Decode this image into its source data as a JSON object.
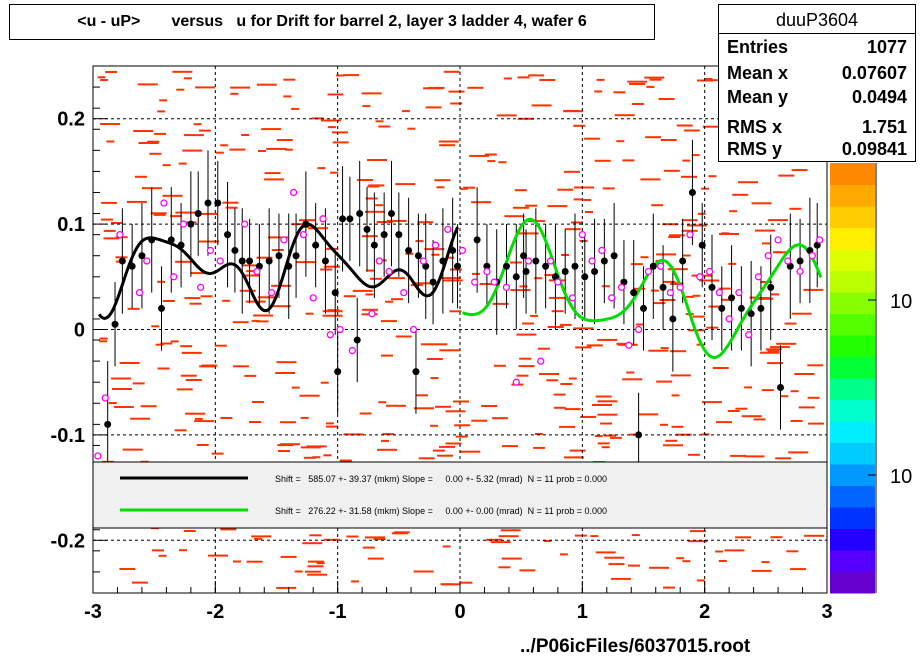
{
  "title": "<u - uP>       versus   u for Drift for barrel 2, layer 3 ladder 4, wafer 6",
  "stats": {
    "name": "duuP3604",
    "rows": [
      {
        "label": "Entries",
        "value": "1077"
      },
      {
        "label": "Mean x",
        "value": "0.07607"
      },
      {
        "label": "Mean y",
        "value": "0.0494"
      },
      {
        "label": "RMS x",
        "value": "1.751"
      },
      {
        "label": "RMS y",
        "value": "0.09841"
      }
    ]
  },
  "footer": "../P06icFiles/6037015.root",
  "colors": {
    "black_fit": "#000000",
    "green_fit": "#00dd00",
    "points": "#000000",
    "open_points": "#ff00ff",
    "background_hist": "#ff3300"
  },
  "chart_data": {
    "type": "scatter",
    "xlim": [
      -3,
      3
    ],
    "ylim": [
      -0.25,
      0.25
    ],
    "x_ticks": [
      -3,
      -2,
      -1,
      0,
      1,
      2,
      3
    ],
    "y_ticks": [
      -0.2,
      -0.1,
      0,
      0.1,
      0.2
    ],
    "x_tick_labels": [
      "-3",
      "-2",
      "-1",
      "0",
      "1",
      "2",
      "3"
    ],
    "y_tick_labels": [
      "-0.2",
      "-0.1",
      "0",
      "0.1",
      "0.2"
    ],
    "grid": true,
    "colz_labels": [
      "10",
      "10"
    ],
    "legend": [
      {
        "text": "Shift =   585.07 +- 39.37 (mkm) Slope =     0.00 +- 5.32 (mrad)  N = 11 prob = 0.000",
        "color": "#000000"
      },
      {
        "text": "Shift =   276.22 +- 31.58 (mkm) Slope =     0.00 +- 0.00 (mrad)  N = 11 prob = 0.000",
        "color": "#00dd00"
      }
    ],
    "series": [
      {
        "style": "black-filled",
        "points": [
          [
            -2.88,
            -0.09,
            0.06
          ],
          [
            -2.82,
            0.005,
            0.04
          ],
          [
            -2.76,
            0.065,
            0.05
          ],
          [
            -2.68,
            0.06,
            0.04
          ],
          [
            -2.6,
            0.07,
            0.05
          ],
          [
            -2.52,
            0.085,
            0.05
          ],
          [
            -2.44,
            0.02,
            0.04
          ],
          [
            -2.36,
            0.085,
            0.05
          ],
          [
            -2.28,
            0.08,
            0.04
          ],
          [
            -2.2,
            0.1,
            0.05
          ],
          [
            -2.14,
            0.11,
            0.04
          ],
          [
            -2.06,
            0.12,
            0.05
          ],
          [
            -1.98,
            0.12,
            0.04
          ],
          [
            -1.9,
            0.09,
            0.05
          ],
          [
            -1.84,
            0.075,
            0.04
          ],
          [
            -1.78,
            0.065,
            0.05
          ],
          [
            -1.72,
            0.065,
            0.04
          ],
          [
            -1.64,
            0.06,
            0.04
          ],
          [
            -1.56,
            0.065,
            0.05
          ],
          [
            -1.48,
            0.07,
            0.04
          ],
          [
            -1.4,
            0.06,
            0.05
          ],
          [
            -1.34,
            0.07,
            0.04
          ],
          [
            -1.26,
            0.1,
            0.05
          ],
          [
            -1.18,
            0.08,
            0.04
          ],
          [
            -1.1,
            0.065,
            0.05
          ],
          [
            -1.02,
            0.035,
            0.04
          ],
          [
            -0.96,
            0.105,
            0.05
          ],
          [
            -0.9,
            0.105,
            0.04
          ],
          [
            -0.82,
            0.11,
            0.05
          ],
          [
            -0.76,
            0.095,
            0.04
          ],
          [
            -0.7,
            0.08,
            0.05
          ],
          [
            -0.62,
            0.09,
            0.04
          ],
          [
            -0.56,
            0.11,
            0.05
          ],
          [
            -0.5,
            0.09,
            0.04
          ],
          [
            -0.42,
            0.075,
            0.05
          ],
          [
            -0.34,
            0.07,
            0.04
          ],
          [
            -0.28,
            0.06,
            0.05
          ],
          [
            -0.22,
            0.045,
            0.04
          ],
          [
            -0.14,
            0.065,
            0.05
          ],
          [
            -0.06,
            0.075,
            0.05
          ],
          [
            -0.02,
            0.06,
            0.04
          ],
          [
            0.14,
            0.085,
            0.05
          ],
          [
            0.22,
            0.06,
            0.04
          ],
          [
            0.3,
            0.045,
            0.05
          ],
          [
            0.38,
            0.06,
            0.04
          ],
          [
            0.46,
            0.05,
            0.05
          ],
          [
            0.54,
            0.055,
            0.04
          ],
          [
            0.62,
            0.065,
            0.05
          ],
          [
            0.7,
            0.06,
            0.04
          ],
          [
            0.78,
            0.05,
            0.05
          ],
          [
            0.86,
            0.055,
            0.04
          ],
          [
            0.94,
            0.06,
            0.05
          ],
          [
            1.02,
            0.05,
            0.04
          ],
          [
            1.1,
            0.055,
            0.05
          ],
          [
            1.18,
            0.065,
            0.04
          ],
          [
            1.26,
            0.07,
            0.05
          ],
          [
            1.34,
            0.045,
            0.04
          ],
          [
            1.42,
            0.035,
            0.05
          ],
          [
            1.5,
            0.02,
            0.04
          ],
          [
            1.58,
            0.06,
            0.05
          ],
          [
            1.66,
            0.04,
            0.04
          ],
          [
            1.74,
            0.01,
            0.05
          ],
          [
            1.82,
            0.065,
            0.04
          ],
          [
            1.9,
            0.13,
            0.05
          ],
          [
            1.98,
            0.08,
            0.04
          ],
          [
            2.06,
            0.04,
            0.05
          ],
          [
            2.14,
            0.02,
            0.04
          ],
          [
            2.22,
            0.03,
            0.05
          ],
          [
            2.3,
            0.02,
            0.04
          ],
          [
            2.38,
            0.015,
            0.05
          ],
          [
            2.46,
            0.02,
            0.04
          ],
          [
            2.54,
            0.04,
            0.05
          ],
          [
            2.62,
            -0.055,
            0.04
          ],
          [
            2.7,
            0.06,
            0.05
          ],
          [
            2.78,
            0.065,
            0.04
          ],
          [
            2.86,
            0.075,
            0.05
          ],
          [
            2.92,
            0.08,
            0.04
          ],
          [
            -1.0,
            -0.04,
            0.04
          ],
          [
            -0.36,
            -0.04,
            0.04
          ],
          [
            1.46,
            -0.1,
            0.04
          ],
          [
            0.52,
            0.07,
            0.04
          ],
          [
            -0.84,
            -0.01,
            0.04
          ]
        ]
      },
      {
        "style": "magenta-open",
        "points": [
          [
            -2.96,
            -0.12
          ],
          [
            -2.9,
            -0.065
          ],
          [
            -2.78,
            0.09
          ],
          [
            -2.62,
            0.035
          ],
          [
            -2.56,
            0.065
          ],
          [
            -2.42,
            0.12
          ],
          [
            -2.34,
            0.05
          ],
          [
            -2.26,
            0.1
          ],
          [
            -2.12,
            0.04
          ],
          [
            -2.04,
            0.075
          ],
          [
            -1.96,
            0.065
          ],
          [
            -1.76,
            0.1
          ],
          [
            -1.66,
            0.055
          ],
          [
            -1.54,
            0.035
          ],
          [
            -1.44,
            0.085
          ],
          [
            -1.36,
            0.13
          ],
          [
            -1.28,
            0.09
          ],
          [
            -1.2,
            0.03
          ],
          [
            -1.12,
            0.105
          ],
          [
            -1.06,
            -0.005
          ],
          [
            -0.98,
            0.0
          ],
          [
            -0.88,
            -0.02
          ],
          [
            -0.72,
            0.015
          ],
          [
            -0.66,
            0.065
          ],
          [
            -0.58,
            0.055
          ],
          [
            -0.46,
            0.035
          ],
          [
            -0.38,
            0.0
          ],
          [
            -0.3,
            0.065
          ],
          [
            -0.2,
            0.08
          ],
          [
            -0.1,
            0.095
          ],
          [
            0.02,
            0.075
          ],
          [
            0.12,
            0.045
          ],
          [
            0.22,
            0.055
          ],
          [
            0.28,
            0.045
          ],
          [
            0.38,
            0.04
          ],
          [
            0.46,
            -0.05
          ],
          [
            0.56,
            0.065
          ],
          [
            0.66,
            -0.03
          ],
          [
            0.74,
            0.065
          ],
          [
            0.8,
            0.045
          ],
          [
            0.92,
            0.03
          ],
          [
            1.0,
            0.09
          ],
          [
            1.08,
            0.065
          ],
          [
            1.16,
            0.075
          ],
          [
            1.24,
            0.03
          ],
          [
            1.32,
            0.04
          ],
          [
            1.38,
            -0.015
          ],
          [
            1.46,
            0.0
          ],
          [
            1.54,
            0.055
          ],
          [
            1.64,
            0.06
          ],
          [
            1.72,
            0.035
          ],
          [
            1.8,
            0.04
          ],
          [
            1.88,
            0.09
          ],
          [
            1.96,
            0.05
          ],
          [
            2.04,
            0.055
          ],
          [
            2.12,
            0.035
          ],
          [
            2.2,
            0.01
          ],
          [
            2.28,
            0.035
          ],
          [
            2.36,
            -0.005
          ],
          [
            2.44,
            0.05
          ],
          [
            2.52,
            0.07
          ],
          [
            2.6,
            0.085
          ],
          [
            2.68,
            0.065
          ],
          [
            2.78,
            0.055
          ],
          [
            2.88,
            0.07
          ],
          [
            2.94,
            0.085
          ]
        ]
      }
    ],
    "fit_black_range": [
      -2.95,
      -0.02
    ],
    "fit_green_range": [
      0.02,
      2.95
    ]
  }
}
